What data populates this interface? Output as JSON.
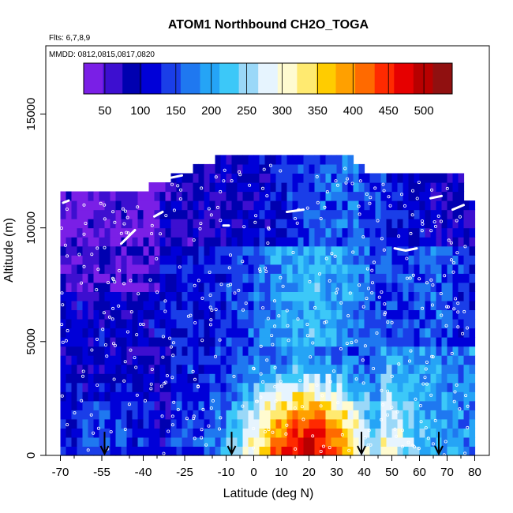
{
  "chart_data": {
    "type": "heatmap",
    "title": "ATOM1 Northbound CH2O_TOGA",
    "subtitle_flights": "Flts: 6,7,8,9",
    "subtitle_dates": "MMDD: 0812,0815,0817,0820",
    "xlabel": "Latitude (deg N)",
    "ylabel": "Altitude (m)",
    "xlim": [
      -70,
      80
    ],
    "ylim": [
      0,
      18000
    ],
    "x_ticks": [
      -70,
      -55,
      -40,
      -25,
      -10,
      0,
      10,
      20,
      30,
      40,
      50,
      60,
      70,
      80
    ],
    "y_ticks": [
      0,
      5000,
      10000,
      15000
    ],
    "colorbar": {
      "range": [
        20,
        540
      ],
      "ticks": [
        50,
        100,
        150,
        200,
        250,
        300,
        350,
        400,
        450,
        500
      ],
      "colors": [
        "#7a1fe6",
        "#3d0fd0",
        "#0000b0",
        "#0000d8",
        "#1a3ee8",
        "#1f78f0",
        "#25a4f6",
        "#3cc8f8",
        "#9ad8f8",
        "#e6f4fe",
        "#fffbd0",
        "#ffea70",
        "#ffcc00",
        "#ffa000",
        "#ff6a00",
        "#ff2a00",
        "#e60000",
        "#b80000",
        "#901010"
      ]
    },
    "arrows_latitude": [
      -54,
      -8,
      39,
      67
    ],
    "grid": false,
    "legend": "colorbar-top"
  }
}
